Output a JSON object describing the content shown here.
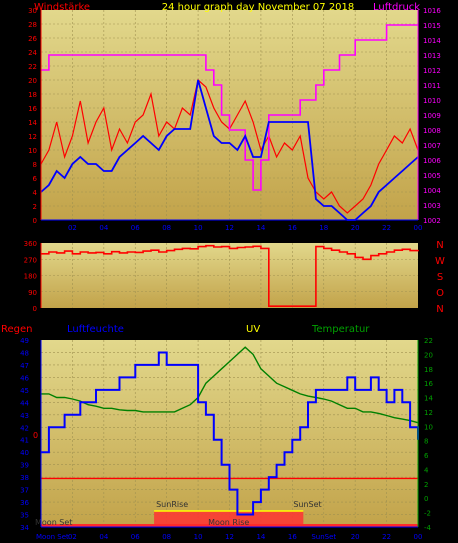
{
  "header": {
    "title": "24 hour graph day  November 07 2018",
    "left_label": "Windstärke",
    "right_label": "Luftdruck"
  },
  "colors": {
    "wind": "#ff0000",
    "wind_avg": "#0000ff",
    "pressure": "#ff00ff",
    "direction": "#ff0000",
    "rain": "#ff0000",
    "humidity": "#0000ff",
    "temperature": "#008000",
    "uv": "#ffff00",
    "sun": "#ff3333"
  },
  "chart_data": [
    {
      "type": "line",
      "name": "wind-pressure",
      "x": [
        0,
        0.5,
        1,
        1.5,
        2,
        2.5,
        3,
        3.5,
        4,
        4.5,
        5,
        5.5,
        6,
        6.5,
        7,
        7.5,
        8,
        8.5,
        9,
        9.5,
        10,
        10.5,
        11,
        11.5,
        12,
        12.5,
        13,
        13.5,
        14,
        14.5,
        15,
        15.5,
        16,
        16.5,
        17,
        17.5,
        18,
        18.5,
        19,
        19.5,
        20,
        20.5,
        21,
        21.5,
        22,
        22.5,
        23,
        23.5,
        24
      ],
      "xticks": [
        "02",
        "04",
        "06",
        "08",
        "10",
        "12",
        "14",
        "16",
        "18",
        "20",
        "22",
        "00"
      ],
      "ylabel": "Windstärke",
      "y2label": "Luftdruck",
      "yticks": [
        "0",
        "2",
        "4",
        "6",
        "8",
        "10",
        "12",
        "14",
        "16",
        "18",
        "20",
        "22",
        "24",
        "26",
        "28",
        "30"
      ],
      "y2ticks": [
        "1002",
        "1003",
        "1004",
        "1005",
        "1006",
        "1007",
        "1008",
        "1009",
        "1010",
        "1011",
        "1012",
        "1013",
        "1014",
        "1015",
        "1016"
      ],
      "ylim": [
        0,
        30
      ],
      "y2lim": [
        1002,
        1016
      ],
      "series": [
        {
          "name": "Windstärke",
          "values": [
            8,
            10,
            14,
            9,
            12,
            17,
            11,
            14,
            16,
            10,
            13,
            11,
            14,
            15,
            18,
            12,
            14,
            13,
            16,
            15,
            20,
            19,
            16,
            14,
            13,
            15,
            17,
            14,
            10,
            12,
            9,
            11,
            10,
            12,
            6,
            4,
            3,
            4,
            2,
            1,
            2,
            3,
            5,
            8,
            10,
            12,
            11,
            13,
            10
          ]
        },
        {
          "name": "Windstärke Mittel",
          "values": [
            4,
            5,
            7,
            6,
            8,
            9,
            8,
            8,
            7,
            7,
            9,
            10,
            11,
            12,
            11,
            10,
            12,
            13,
            13,
            13,
            20,
            16,
            12,
            11,
            11,
            10,
            12,
            9,
            9,
            14,
            14,
            14,
            14,
            14,
            14,
            3,
            2,
            2,
            1,
            0,
            0,
            1,
            2,
            4,
            5,
            6,
            7,
            8,
            9
          ]
        },
        {
          "name": "Luftdruck",
          "values": [
            1012,
            1013,
            1013,
            1013,
            1013,
            1013,
            1013,
            1013,
            1013,
            1013,
            1013,
            1013,
            1013,
            1013,
            1013,
            1013,
            1013,
            1013,
            1013,
            1013,
            1013,
            1012,
            1011,
            1009,
            1008,
            1008,
            1006,
            1004,
            1006,
            1009,
            1009,
            1009,
            1009,
            1010,
            1010,
            1011,
            1012,
            1012,
            1013,
            1013,
            1014,
            1014,
            1014,
            1014,
            1015,
            1015,
            1015,
            1015,
            1015
          ]
        }
      ]
    },
    {
      "type": "line",
      "name": "wind-direction",
      "yticks": [
        "0",
        "90",
        "180",
        "270",
        "360"
      ],
      "compass": [
        "N",
        "W",
        "S",
        "O",
        "N"
      ],
      "ylim": [
        0,
        360
      ],
      "series": [
        {
          "name": "Windrichtung",
          "values": [
            300,
            310,
            305,
            315,
            300,
            310,
            305,
            308,
            300,
            312,
            305,
            310,
            308,
            315,
            320,
            310,
            318,
            325,
            330,
            328,
            340,
            345,
            338,
            340,
            330,
            335,
            338,
            342,
            330,
            10,
            10,
            10,
            10,
            10,
            10,
            340,
            330,
            320,
            310,
            300,
            280,
            270,
            290,
            300,
            310,
            320,
            325,
            318,
            322
          ]
        }
      ]
    },
    {
      "type": "line",
      "name": "rain-humidity-uv-temperature",
      "labels": {
        "rain": "Regen",
        "humidity": "Luftfeuchte",
        "uv": "UV",
        "temperature": "Temperatur"
      },
      "yticks": [
        "34",
        "35",
        "36",
        "37",
        "38",
        "39",
        "40",
        "41",
        "42",
        "43",
        "44",
        "45",
        "46",
        "47",
        "48",
        "49"
      ],
      "y2ticks": [
        "-4",
        "-2",
        "0",
        "2",
        "4",
        "6",
        "8",
        "10",
        "12",
        "14",
        "16",
        "18",
        "20",
        "22"
      ],
      "rain_tick": "0",
      "ylim": [
        34,
        49
      ],
      "y2lim": [
        -4,
        22
      ],
      "series": [
        {
          "name": "Luftfeuchte",
          "values": [
            40,
            42,
            42,
            43,
            43,
            44,
            44,
            45,
            45,
            45,
            46,
            46,
            47,
            47,
            47,
            48,
            47,
            47,
            47,
            47,
            44,
            43,
            41,
            39,
            37,
            35,
            35,
            36,
            37,
            38,
            39,
            40,
            41,
            42,
            44,
            45,
            45,
            45,
            45,
            46,
            45,
            45,
            46,
            45,
            44,
            45,
            44,
            42,
            41
          ]
        },
        {
          "name": "Temperatur",
          "values": [
            14.5,
            14.5,
            14,
            14,
            13.8,
            13.5,
            13,
            12.8,
            12.5,
            12.5,
            12.3,
            12.2,
            12.2,
            12,
            12,
            12,
            12,
            12,
            12.5,
            13,
            14,
            16,
            17,
            18,
            19,
            20,
            21,
            20,
            18,
            17,
            16,
            15.5,
            15,
            14.5,
            14.2,
            14,
            13.8,
            13.5,
            13,
            12.5,
            12.5,
            12,
            12,
            11.8,
            11.5,
            11.2,
            11,
            10.8,
            10.5
          ]
        },
        {
          "name": "Regen",
          "values": [
            0,
            0,
            0,
            0,
            0,
            0,
            0,
            0,
            0,
            0,
            0,
            0,
            0,
            0,
            0,
            0,
            0,
            0,
            0,
            0,
            0,
            0,
            0,
            0,
            0,
            0,
            0,
            0,
            0,
            0,
            0,
            0,
            0,
            0,
            0,
            0,
            0,
            0,
            0,
            0,
            0,
            0,
            0,
            0,
            0,
            0,
            0,
            0,
            0
          ]
        }
      ],
      "sun": {
        "sunrise": "SunRise",
        "sunset": "SunSet",
        "moonset": "Moon Set",
        "moonrise": "Moon Rise",
        "sunrise_hour": 7.2,
        "sunset_hour": 16.7
      },
      "xticks": [
        "Moon Set",
        "02",
        "04",
        "06",
        "08",
        "10",
        "12",
        "14",
        "16",
        "SunSet",
        "20",
        "22",
        "00"
      ]
    }
  ]
}
